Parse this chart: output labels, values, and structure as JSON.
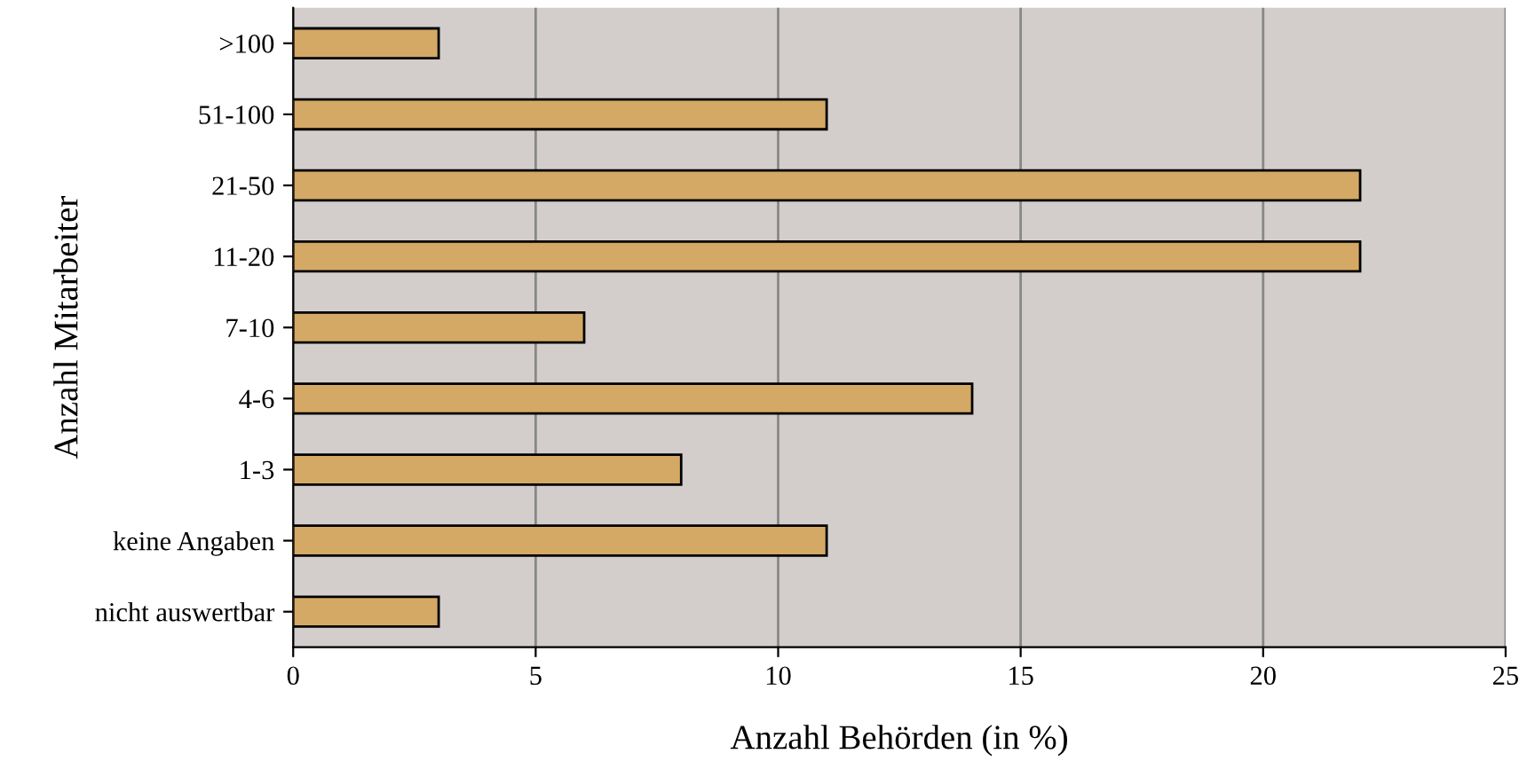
{
  "chart_data": {
    "type": "bar",
    "orientation": "horizontal",
    "xlabel": "Anzahl Behörden (in %)",
    "ylabel": "Anzahl Mitarbeiter",
    "categories": [
      ">100",
      "51-100",
      "21-50",
      "11-20",
      "7-10",
      "4-6",
      "1-3",
      "keine Angaben",
      "nicht auswertbar"
    ],
    "values": [
      3,
      11,
      22,
      22,
      6,
      14,
      8,
      11,
      3
    ],
    "color": "#d4a865",
    "xlim": [
      0,
      25
    ],
    "xticks": [
      0,
      5,
      10,
      15,
      20,
      25
    ],
    "grid": "x"
  }
}
